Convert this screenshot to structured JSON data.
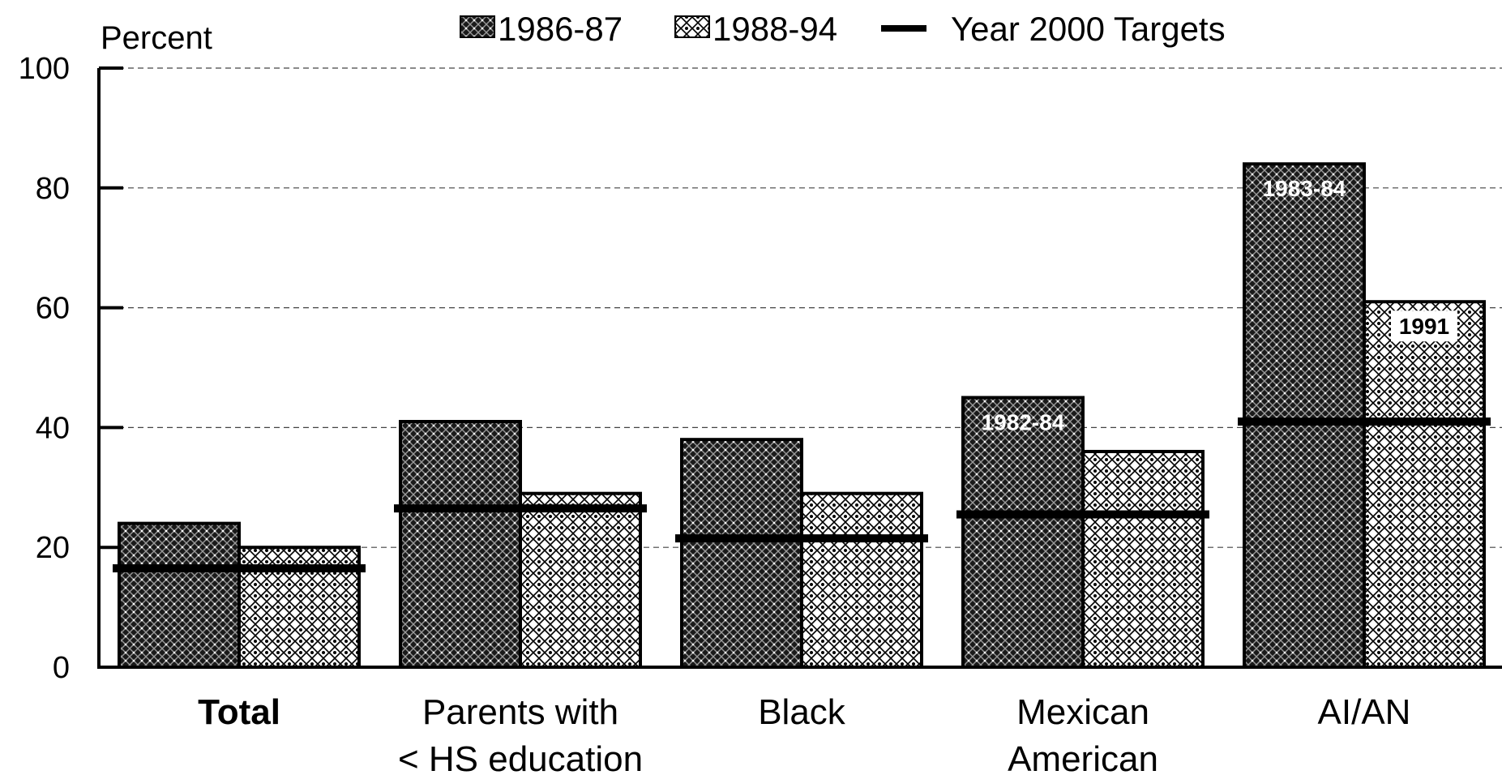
{
  "chart_data": {
    "type": "bar",
    "ylabel": "Percent",
    "ylim": [
      0,
      100
    ],
    "yticks": [
      0,
      20,
      40,
      60,
      80,
      100
    ],
    "grid": true,
    "legend_position": "top",
    "categories": [
      {
        "lines": [
          "Total"
        ],
        "bold": true
      },
      {
        "lines": [
          "Parents with",
          "< HS education"
        ],
        "bold": false
      },
      {
        "lines": [
          "Black"
        ],
        "bold": false
      },
      {
        "lines": [
          "Mexican",
          "American"
        ],
        "bold": false
      },
      {
        "lines": [
          "AI/AN"
        ],
        "bold": false
      }
    ],
    "series": [
      {
        "name": "1986-87",
        "pattern": "dark",
        "values": [
          24,
          41,
          38,
          45,
          84
        ]
      },
      {
        "name": "1988-94",
        "pattern": "light",
        "values": [
          20,
          29,
          29,
          36,
          61
        ]
      }
    ],
    "targets": {
      "name": "Year 2000 Targets",
      "values": [
        16.5,
        26.5,
        21.5,
        25.5,
        41
      ]
    },
    "bar_notes": [
      {
        "category": 3,
        "series": 0,
        "text": "1982-84"
      },
      {
        "category": 4,
        "series": 0,
        "text": "1983-84"
      },
      {
        "category": 4,
        "series": 1,
        "text": "1991"
      }
    ]
  }
}
